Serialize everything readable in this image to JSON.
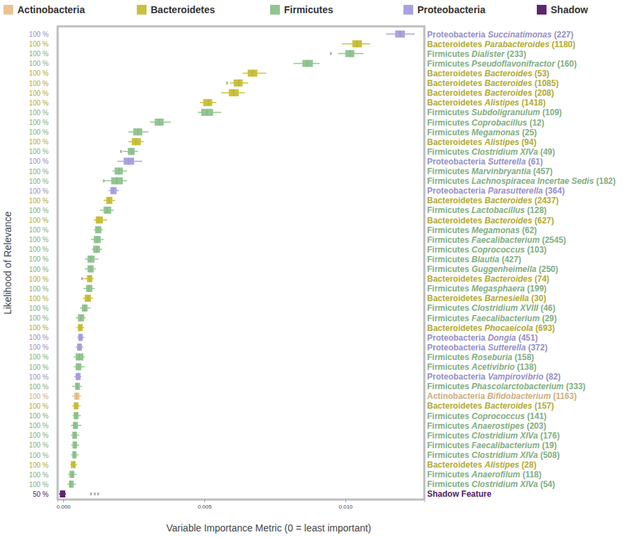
{
  "chart_data": {
    "type": "box",
    "orientation": "horizontal",
    "xlabel": "Variable Importance Metric (0 = least important)",
    "ylabel": "Likelihood of Relevance",
    "xlim": [
      -0.0002,
      0.0128
    ],
    "xticks": [
      {
        "value": 0,
        "label": "0.000"
      },
      {
        "value": 0.005,
        "label": "0.005"
      },
      {
        "value": 0.01,
        "label": "0.010"
      }
    ],
    "legend": "top",
    "series": [
      {
        "name": "Actinobacteria",
        "color": "#e9c48f"
      },
      {
        "name": "Bacteroidetes",
        "color": "#c9c13c"
      },
      {
        "name": "Firmicutes",
        "color": "#92c592"
      },
      {
        "name": "Proteobacteria",
        "color": "#a9a2e0"
      },
      {
        "name": "Shadow",
        "color": "#5e2570"
      }
    ],
    "rows": [
      {
        "series": "Proteobacteria",
        "genus": "Succinatimonas",
        "id": "(227)",
        "relevance": "100 %",
        "min": 0.01145,
        "q1": 0.01177,
        "median": 0.01194,
        "q3": 0.01211,
        "max": 0.01246,
        "outliers": []
      },
      {
        "series": "Bacteroidetes",
        "genus": "Parabacteroides",
        "id": "(1180)",
        "relevance": "100 %",
        "min": 0.00988,
        "q1": 0.01025,
        "median": 0.01042,
        "q3": 0.01059,
        "max": 0.01088,
        "outliers": []
      },
      {
        "series": "Firmicutes",
        "genus": "Dialister",
        "id": "(233)",
        "relevance": "100 %",
        "min": 0.00975,
        "q1": 0.01,
        "median": 0.01017,
        "q3": 0.01032,
        "max": 0.01064,
        "outliers": [
          0.00948
        ]
      },
      {
        "series": "Firmicutes",
        "genus": "Pseudoflavonifractor",
        "id": "(160)",
        "relevance": "100 %",
        "min": 0.00816,
        "q1": 0.00848,
        "median": 0.00865,
        "q3": 0.00885,
        "max": 0.00909,
        "outliers": []
      },
      {
        "series": "Bacteroidetes",
        "genus": "Bacteroides",
        "id": "(53)",
        "relevance": "100 %",
        "min": 0.00636,
        "q1": 0.00654,
        "median": 0.00671,
        "q3": 0.00688,
        "max": 0.0072,
        "outliers": []
      },
      {
        "series": "Bacteroidetes",
        "genus": "Bacteroides",
        "id": "(1085)",
        "relevance": "100 %",
        "min": 0.0059,
        "q1": 0.00604,
        "median": 0.00622,
        "q3": 0.00636,
        "max": 0.00656,
        "outliers": [
          0.0058
        ]
      },
      {
        "series": "Bacteroidetes",
        "genus": "Bacteroides",
        "id": "(208)",
        "relevance": "100 %",
        "min": 0.0056,
        "q1": 0.00587,
        "median": 0.00604,
        "q3": 0.00622,
        "max": 0.00644,
        "outliers": []
      },
      {
        "series": "Bacteroidetes",
        "genus": "Alistipes",
        "id": "(1418)",
        "relevance": "100 %",
        "min": 0.00484,
        "q1": 0.00496,
        "median": 0.00514,
        "q3": 0.00528,
        "max": 0.00543,
        "outliers": []
      },
      {
        "series": "Firmicutes",
        "genus": "Subdoligranulum",
        "id": "(109)",
        "relevance": "100 %",
        "min": 0.00477,
        "q1": 0.00489,
        "median": 0.00509,
        "q3": 0.00531,
        "max": 0.0056,
        "outliers": []
      },
      {
        "series": "Firmicutes",
        "genus": "Coprobacillus",
        "id": "(12)",
        "relevance": "100 %",
        "min": 0.00307,
        "q1": 0.00324,
        "median": 0.00342,
        "q3": 0.00356,
        "max": 0.00381,
        "outliers": []
      },
      {
        "series": "Firmicutes",
        "genus": "Megamonas",
        "id": "(25)",
        "relevance": "100 %",
        "min": 0.00231,
        "q1": 0.00248,
        "median": 0.00265,
        "q3": 0.0028,
        "max": 0.00302,
        "outliers": []
      },
      {
        "series": "Bacteroidetes",
        "genus": "Alistipes",
        "id": "(94)",
        "relevance": "100 %",
        "min": 0.00231,
        "q1": 0.00243,
        "median": 0.00258,
        "q3": 0.00275,
        "max": 0.00285,
        "outliers": []
      },
      {
        "series": "Firmicutes",
        "genus": "Clostridium XlVa",
        "id": "(49)",
        "relevance": "100 %",
        "min": 0.00211,
        "q1": 0.00229,
        "median": 0.00241,
        "q3": 0.00253,
        "max": 0.00265,
        "outliers": [
          0.00204
        ]
      },
      {
        "series": "Proteobacteria",
        "genus": "Sutterella",
        "id": "(61)",
        "relevance": "100 %",
        "min": 0.00192,
        "q1": 0.00214,
        "median": 0.00231,
        "q3": 0.00251,
        "max": 0.0028,
        "outliers": []
      },
      {
        "series": "Firmicutes",
        "genus": "Marvinbryantia",
        "id": "(457)",
        "relevance": "100 %",
        "min": 0.00174,
        "q1": 0.00182,
        "median": 0.00197,
        "q3": 0.00211,
        "max": 0.00226,
        "outliers": []
      },
      {
        "series": "Firmicutes",
        "genus": "Lachnospiracea Incertae Sedis",
        "id": "(182)",
        "relevance": "100 %",
        "min": 0.00147,
        "q1": 0.0017,
        "median": 0.00189,
        "q3": 0.00211,
        "max": 0.00226,
        "outliers": [
          0.00143
        ]
      },
      {
        "series": "Proteobacteria",
        "genus": "Parasutterella",
        "id": "(364)",
        "relevance": "100 %",
        "min": 0.0016,
        "q1": 0.00167,
        "median": 0.00177,
        "q3": 0.00189,
        "max": 0.00197,
        "outliers": []
      },
      {
        "series": "Bacteroidetes",
        "genus": "Bacteroides",
        "id": "(2437)",
        "relevance": "100 %",
        "min": 0.00143,
        "q1": 0.00152,
        "median": 0.00162,
        "q3": 0.00174,
        "max": 0.00184,
        "outliers": []
      },
      {
        "series": "Firmicutes",
        "genus": "Lactobacillus",
        "id": "(128)",
        "relevance": "100 %",
        "min": 0.0013,
        "q1": 0.00143,
        "median": 0.00155,
        "q3": 0.0017,
        "max": 0.00179,
        "outliers": []
      },
      {
        "series": "Bacteroidetes",
        "genus": "Bacteroides",
        "id": "(627)",
        "relevance": "100 %",
        "min": 0.00108,
        "q1": 0.00115,
        "median": 0.00125,
        "q3": 0.0014,
        "max": 0.00155,
        "outliers": []
      },
      {
        "series": "Firmicutes",
        "genus": "Megamonas",
        "id": "(62)",
        "relevance": "100 %",
        "min": 0.00108,
        "q1": 0.00113,
        "median": 0.00123,
        "q3": 0.00135,
        "max": 0.0014,
        "outliers": []
      },
      {
        "series": "Firmicutes",
        "genus": "Faecalibacterium",
        "id": "(2545)",
        "relevance": "100 %",
        "min": 0.00098,
        "q1": 0.00108,
        "median": 0.0012,
        "q3": 0.00133,
        "max": 0.00143,
        "outliers": []
      },
      {
        "series": "Firmicutes",
        "genus": "Coprococcus",
        "id": "(103)",
        "relevance": "100 %",
        "min": 0.00101,
        "q1": 0.00106,
        "median": 0.00118,
        "q3": 0.0013,
        "max": 0.00138,
        "outliers": []
      },
      {
        "series": "Firmicutes",
        "genus": "Blautia",
        "id": "(427)",
        "relevance": "100 %",
        "min": 0.00076,
        "q1": 0.00086,
        "median": 0.00098,
        "q3": 0.00111,
        "max": 0.00125,
        "outliers": []
      },
      {
        "series": "Firmicutes",
        "genus": "Guggenheimella",
        "id": "(250)",
        "relevance": "100 %",
        "min": 0.00076,
        "q1": 0.00086,
        "median": 0.00096,
        "q3": 0.00108,
        "max": 0.00115,
        "outliers": []
      },
      {
        "series": "Bacteroidetes",
        "genus": "Bacteroides",
        "id": "(74)",
        "relevance": "100 %",
        "min": 0.00071,
        "q1": 0.00084,
        "median": 0.00093,
        "q3": 0.00103,
        "max": 0.00108,
        "outliers": [
          0.00066
        ]
      },
      {
        "series": "Firmicutes",
        "genus": "Megasphaera",
        "id": "(199)",
        "relevance": "100 %",
        "min": 0.00071,
        "q1": 0.00081,
        "median": 0.00091,
        "q3": 0.00103,
        "max": 0.00111,
        "outliers": []
      },
      {
        "series": "Bacteroidetes",
        "genus": "Barnesiella",
        "id": "(30)",
        "relevance": "100 %",
        "min": 0.00069,
        "q1": 0.00076,
        "median": 0.00088,
        "q3": 0.00098,
        "max": 0.00106,
        "outliers": []
      },
      {
        "series": "Firmicutes",
        "genus": "Clostridium XVIII",
        "id": "(46)",
        "relevance": "100 %",
        "min": 0.00059,
        "q1": 0.00066,
        "median": 0.00076,
        "q3": 0.00086,
        "max": 0.00096,
        "outliers": []
      },
      {
        "series": "Firmicutes",
        "genus": "Faecalibacterium",
        "id": "(29)",
        "relevance": "100 %",
        "min": 0.00044,
        "q1": 0.00052,
        "median": 0.00061,
        "q3": 0.00074,
        "max": 0.00079,
        "outliers": []
      },
      {
        "series": "Bacteroidetes",
        "genus": "Phocaeicola",
        "id": "(693)",
        "relevance": "100 %",
        "min": 0.00047,
        "q1": 0.00052,
        "median": 0.00059,
        "q3": 0.00069,
        "max": 0.00074,
        "outliers": []
      },
      {
        "series": "Proteobacteria",
        "genus": "Dongia",
        "id": "(451)",
        "relevance": "100 %",
        "min": 0.00049,
        "q1": 0.00053,
        "median": 0.0006,
        "q3": 0.00069,
        "max": 0.00075,
        "outliers": []
      },
      {
        "series": "Proteobacteria",
        "genus": "Sutterella",
        "id": "(372)",
        "relevance": "100 %",
        "min": 0.00044,
        "q1": 0.00049,
        "median": 0.00057,
        "q3": 0.00066,
        "max": 0.00071,
        "outliers": []
      },
      {
        "series": "Firmicutes",
        "genus": "Roseburia",
        "id": "(158)",
        "relevance": "100 %",
        "min": 0.00037,
        "q1": 0.00044,
        "median": 0.00057,
        "q3": 0.00071,
        "max": 0.00076,
        "outliers": []
      },
      {
        "series": "Firmicutes",
        "genus": "Acetivibrio",
        "id": "(138)",
        "relevance": "100 %",
        "min": 0.00037,
        "q1": 0.00044,
        "median": 0.00054,
        "q3": 0.00064,
        "max": 0.00076,
        "outliers": []
      },
      {
        "series": "Proteobacteria",
        "genus": "Vampirovibrio",
        "id": "(82)",
        "relevance": "100 %",
        "min": 0.00039,
        "q1": 0.00044,
        "median": 0.00052,
        "q3": 0.00061,
        "max": 0.00064,
        "outliers": []
      },
      {
        "series": "Firmicutes",
        "genus": "Phascolarctobacterium",
        "id": "(333)",
        "relevance": "100 %",
        "min": 0.00032,
        "q1": 0.00042,
        "median": 0.00049,
        "q3": 0.00059,
        "max": 0.00066,
        "outliers": []
      },
      {
        "series": "Actinobacteria",
        "genus": "Bifidobacterium",
        "id": "(1163)",
        "relevance": "100 %",
        "min": 0.00032,
        "q1": 0.00039,
        "median": 0.00047,
        "q3": 0.00057,
        "max": 0.00064,
        "outliers": []
      },
      {
        "series": "Bacteroidetes",
        "genus": "Bacteroides",
        "id": "(157)",
        "relevance": "100 %",
        "min": 0.00032,
        "q1": 0.00037,
        "median": 0.00044,
        "q3": 0.00054,
        "max": 0.00061,
        "outliers": []
      },
      {
        "series": "Firmicutes",
        "genus": "Coprococcus",
        "id": "(141)",
        "relevance": "100 %",
        "min": 0.00033,
        "q1": 0.00037,
        "median": 0.00045,
        "q3": 0.00054,
        "max": 0.00062,
        "outliers": []
      },
      {
        "series": "Firmicutes",
        "genus": "Anaerostipes",
        "id": "(203)",
        "relevance": "100 %",
        "min": 0.00027,
        "q1": 0.00034,
        "median": 0.00042,
        "q3": 0.00052,
        "max": 0.00064,
        "outliers": []
      },
      {
        "series": "Firmicutes",
        "genus": "Clostridium XlVa",
        "id": "(176)",
        "relevance": "100 %",
        "min": 0.00027,
        "q1": 0.00032,
        "median": 0.00039,
        "q3": 0.00049,
        "max": 0.00057,
        "outliers": []
      },
      {
        "series": "Firmicutes",
        "genus": "Faecalibacterium",
        "id": "(19)",
        "relevance": "100 %",
        "min": 0.00028,
        "q1": 0.00033,
        "median": 0.0004,
        "q3": 0.00049,
        "max": 0.00056,
        "outliers": []
      },
      {
        "series": "Firmicutes",
        "genus": "Clostridium XlVa",
        "id": "(508)",
        "relevance": "100 %",
        "min": 0.00027,
        "q1": 0.00032,
        "median": 0.00039,
        "q3": 0.00047,
        "max": 0.00054,
        "outliers": []
      },
      {
        "series": "Bacteroidetes",
        "genus": "Alistipes",
        "id": "(28)",
        "relevance": "100 %",
        "min": 0.00025,
        "q1": 0.00027,
        "median": 0.00037,
        "q3": 0.00044,
        "max": 0.00049,
        "outliers": []
      },
      {
        "series": "Firmicutes",
        "genus": "Anaerofilum",
        "id": "(118)",
        "relevance": "100 %",
        "min": 0.00017,
        "q1": 0.00022,
        "median": 0.00032,
        "q3": 0.00039,
        "max": 0.00047,
        "outliers": []
      },
      {
        "series": "Firmicutes",
        "genus": "Clostridium XlVa",
        "id": "(54)",
        "relevance": "100 %",
        "min": 0.00015,
        "q1": 0.0002,
        "median": 0.00027,
        "q3": 0.00037,
        "max": 0.00044,
        "outliers": []
      },
      {
        "series": "Shadow",
        "label": "Shadow Feature",
        "relevance": "50 %",
        "min": -0.00015,
        "q1": -0.00012,
        "median": -2e-05,
        "q3": 7e-05,
        "max": 0.0001,
        "outliers": [
          0.00098,
          0.00111,
          0.00123
        ]
      }
    ]
  }
}
